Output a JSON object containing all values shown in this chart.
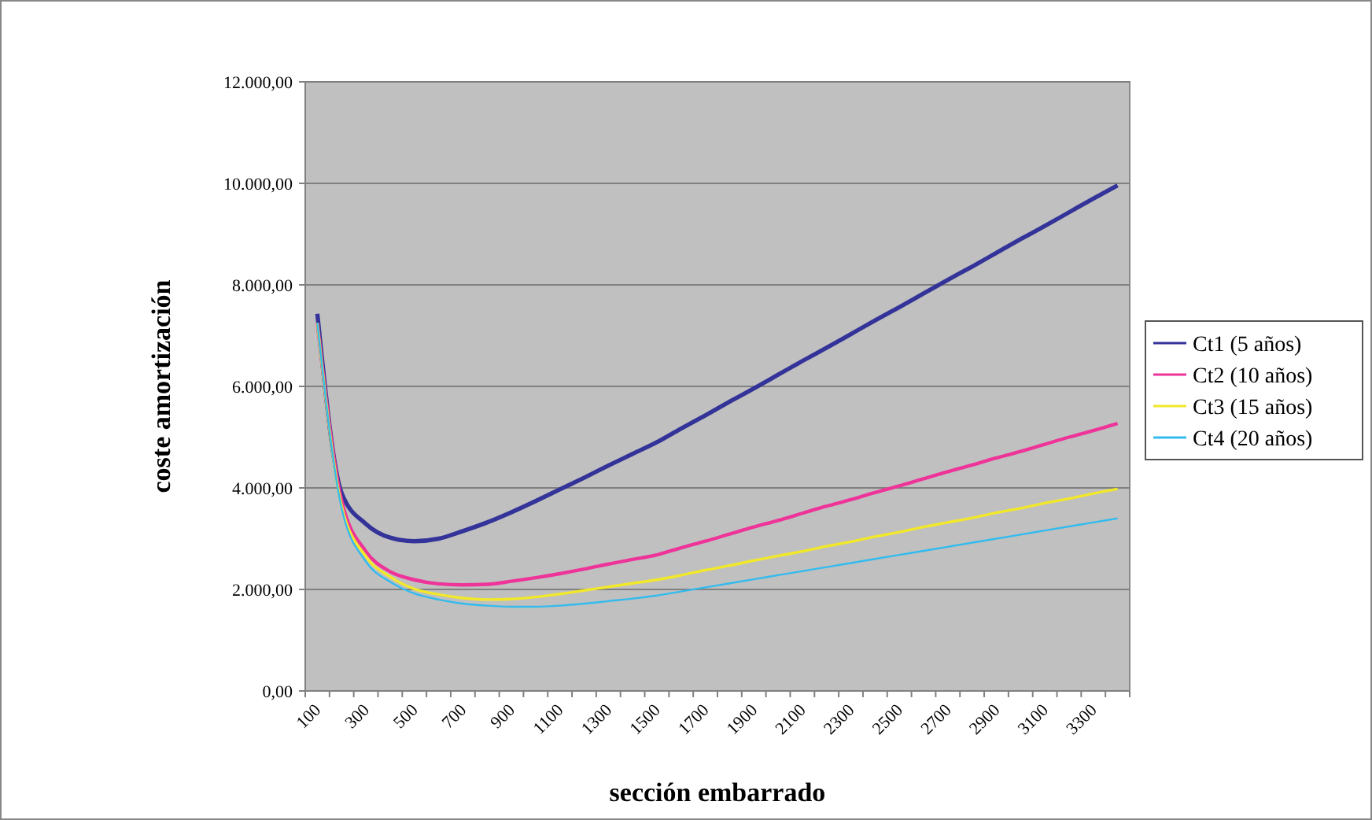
{
  "chart_data": {
    "type": "line",
    "xlabel": "sección embarrado",
    "ylabel": "coste amortización",
    "categories": [
      "100",
      null,
      "300",
      null,
      "500",
      null,
      "700",
      null,
      "900",
      null,
      "1100",
      null,
      "1300",
      null,
      "1500",
      null,
      "1700",
      null,
      "1900",
      null,
      "2100",
      null,
      "2300",
      null,
      "2500",
      null,
      "2700",
      null,
      "2900",
      null,
      "3100",
      null,
      "3300",
      null
    ],
    "ylim": [
      0,
      12000
    ],
    "yticks": [
      {
        "value": 0,
        "label": "0,00"
      },
      {
        "value": 2000,
        "label": "2.000,00"
      },
      {
        "value": 4000,
        "label": "4.000,00"
      },
      {
        "value": 6000,
        "label": "6.000,00"
      },
      {
        "value": 8000,
        "label": "8.000,00"
      },
      {
        "value": 10000,
        "label": "10.000,00"
      },
      {
        "value": 12000,
        "label": "12.000,00"
      }
    ],
    "grid": "y",
    "legend": "right",
    "marker": "none",
    "line_style": "solid",
    "series": [
      {
        "name": "Ct1 (5 años)",
        "color": "#333399",
        "values": [
          7430,
          3900,
          3290,
          3020,
          2950,
          3000,
          3150,
          3320,
          3520,
          3740,
          3970,
          4200,
          4440,
          4670,
          4900,
          5170,
          5430,
          5700,
          5960,
          6230,
          6500,
          6760,
          7030,
          7300,
          7560,
          7830,
          8100,
          8360,
          8630,
          8900,
          9160,
          9430,
          9700,
          9960
        ]
      },
      {
        "name": "Ct2 (10 años)",
        "color": "#ee3399",
        "values": [
          7250,
          3750,
          2750,
          2350,
          2190,
          2110,
          2090,
          2100,
          2160,
          2230,
          2310,
          2400,
          2500,
          2590,
          2680,
          2820,
          2950,
          3090,
          3230,
          3360,
          3500,
          3640,
          3770,
          3910,
          4040,
          4180,
          4320,
          4450,
          4590,
          4720,
          4860,
          5000,
          5130,
          5270
        ]
      },
      {
        "name": "Ct3 (15 años)",
        "color": "#f2e82a",
        "values": [
          7250,
          3650,
          2650,
          2250,
          2010,
          1900,
          1830,
          1800,
          1810,
          1850,
          1910,
          1980,
          2050,
          2120,
          2190,
          2280,
          2380,
          2470,
          2570,
          2660,
          2750,
          2850,
          2940,
          3040,
          3130,
          3230,
          3320,
          3410,
          3510,
          3600,
          3700,
          3790,
          3890,
          3980
        ]
      },
      {
        "name": "Ct4 (20 años)",
        "color": "#33bbee",
        "values": [
          7250,
          3600,
          2550,
          2150,
          1920,
          1800,
          1720,
          1680,
          1660,
          1660,
          1680,
          1720,
          1770,
          1820,
          1880,
          1960,
          2040,
          2120,
          2200,
          2280,
          2360,
          2440,
          2520,
          2600,
          2680,
          2760,
          2840,
          2920,
          3000,
          3080,
          3160,
          3240,
          3320,
          3400
        ]
      }
    ]
  }
}
